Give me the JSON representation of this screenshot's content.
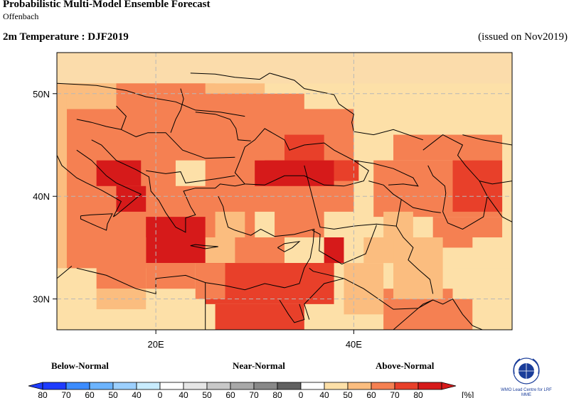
{
  "header": {
    "title": "Probabilistic Multi-Model Ensemble Forecast",
    "subtitle": "Offenbach",
    "variable": "2m Temperature : DJF2019",
    "issued": "(issued on Nov2019)"
  },
  "map": {
    "lon_range": [
      10,
      56
    ],
    "lat_range": [
      27,
      54
    ],
    "lat_labels": [
      "50N",
      "40N",
      "30N"
    ],
    "lon_labels": [
      "20E",
      "40E"
    ],
    "grid": true,
    "cell_size_deg": 2.5,
    "colors": {
      "above_40_50": "#fde0a8",
      "above_50_60": "#fbbd7f",
      "above_60_70": "#f58052",
      "above_70_80": "#e8402a",
      "above_80": "#d61a1a",
      "normal_bg": "#fbdcab"
    }
  },
  "legend": {
    "below_label": "Below-Normal",
    "near_label": "Near-Normal",
    "above_label": "Above-Normal",
    "unit": "[%]",
    "below_ticks": [
      "80",
      "70",
      "60",
      "50",
      "40"
    ],
    "near_ticks": [
      "0",
      "40",
      "50",
      "60",
      "70",
      "80"
    ],
    "above_ticks": [
      "0",
      "40",
      "50",
      "60",
      "70",
      "80"
    ],
    "below_colors": [
      "#1e3cff",
      "#3c8cff",
      "#6cb4ff",
      "#9cd0ff",
      "#c8ecff"
    ],
    "near_colors": [
      "#ffffff",
      "#e6e6e6",
      "#c8c8c8",
      "#a8a8a8",
      "#888888",
      "#606060"
    ],
    "above_colors": [
      "#ffffff",
      "#fde0a8",
      "#fbbd7f",
      "#f58052",
      "#e8402a",
      "#d61a1a"
    ]
  },
  "logo": {
    "icon": "wmo-emblem-icon",
    "text": "WMO Lead Centre for LRF MME"
  }
}
